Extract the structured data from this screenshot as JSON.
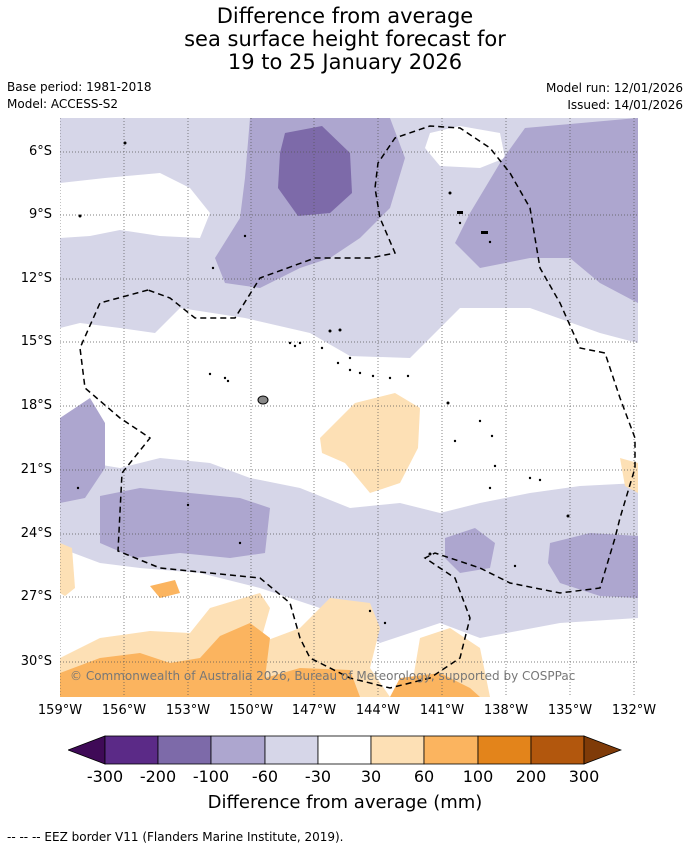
{
  "title": {
    "line1": "Difference from average",
    "line2": "sea surface height forecast for",
    "line3": "19 to 25 January 2026"
  },
  "meta": {
    "base_period": "Base period: 1981-2018",
    "model": "Model: ACCESS-S2",
    "model_run": "Model run: 12/01/2026",
    "issued": "Issued: 14/01/2026"
  },
  "map": {
    "credit": "© Commonwealth of Australia 2026, Bureau of Meteorology, supported by COSPPac",
    "y_labels": [
      "6°S",
      "9°S",
      "12°S",
      "15°S",
      "18°S",
      "21°S",
      "24°S",
      "27°S",
      "30°S"
    ],
    "x_labels": [
      "159°W",
      "156°W",
      "153°W",
      "150°W",
      "147°W",
      "144°W",
      "141°W",
      "138°W",
      "135°W",
      "132°W"
    ]
  },
  "colorbar": {
    "title": "Difference from average (mm)",
    "labels": [
      "-300",
      "-200",
      "-100",
      "-60",
      "-30",
      "30",
      "60",
      "100",
      "200",
      "300"
    ],
    "colors": [
      "#3f0a57",
      "#5b2a87",
      "#7d6aa9",
      "#ada6cf",
      "#d6d6e8",
      "#ffffff",
      "#fde0b5",
      "#fbb45f",
      "#e3841b",
      "#b2570d",
      "#7f3b08"
    ]
  },
  "footer": "--  --  -- EEZ border V11 (Flanders Marine Institute, 2019)."
}
